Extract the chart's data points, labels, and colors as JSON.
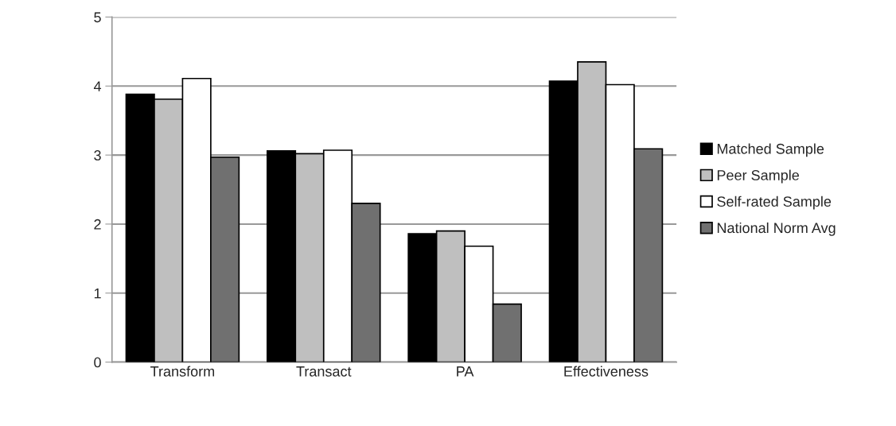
{
  "chart_data": {
    "type": "bar",
    "categories": [
      "Transform",
      "Transact",
      "PA",
      "Effectiveness"
    ],
    "series": [
      {
        "name": "Matched Sample",
        "color": "#000000",
        "values": [
          3.88,
          3.06,
          1.86,
          4.07
        ]
      },
      {
        "name": "Peer Sample",
        "color": "#bfbfbf",
        "values": [
          3.81,
          3.02,
          1.9,
          4.35
        ]
      },
      {
        "name": "Self-rated Sample",
        "color": "#ffffff",
        "values": [
          4.11,
          3.07,
          1.68,
          4.02
        ]
      },
      {
        "name": "National Norm Avg",
        "color": "#707070",
        "values": [
          2.97,
          2.3,
          0.84,
          3.09
        ]
      }
    ],
    "ylim": [
      0,
      5
    ],
    "yticks": [
      0,
      1,
      2,
      3,
      4,
      5
    ],
    "grid": "y",
    "legend": "right"
  }
}
